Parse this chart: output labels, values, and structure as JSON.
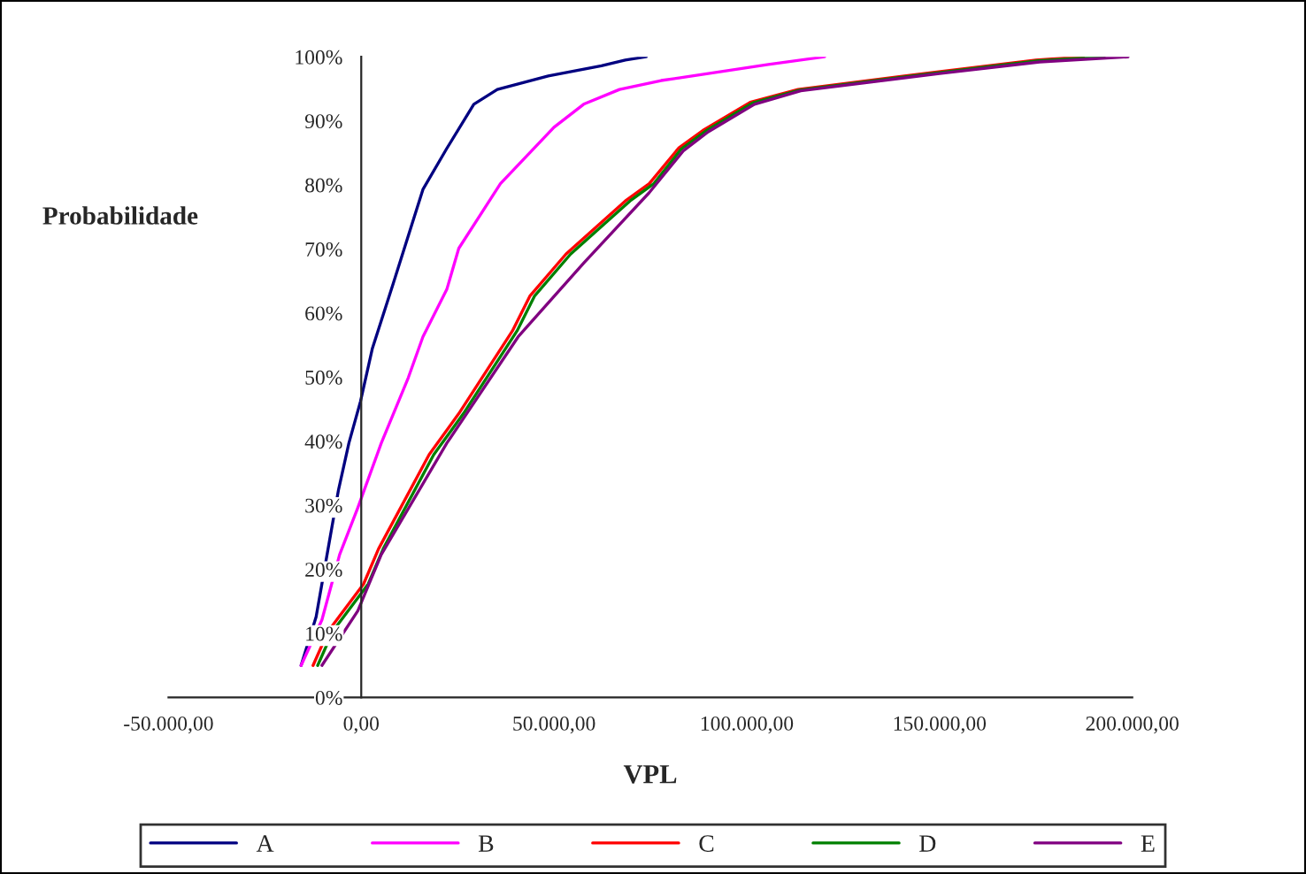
{
  "chart_data": {
    "type": "line",
    "xlabel": "VPL",
    "ylabel": "Probabilidade",
    "xlim": [
      -50000,
      200000
    ],
    "xticks": [
      {
        "value": -50000,
        "label": "-50.000,00"
      },
      {
        "value": 0,
        "label": "0,00"
      },
      {
        "value": 50000,
        "label": "50.000,00"
      },
      {
        "value": 100000,
        "label": "100.000,00"
      },
      {
        "value": 150000,
        "label": "150.000,00"
      },
      {
        "value": 200000,
        "label": "200.000,00"
      }
    ],
    "ylim": [
      0,
      100
    ],
    "yticks": [
      {
        "value": 0,
        "label": "0%"
      },
      {
        "value": 10,
        "label": "10%"
      },
      {
        "value": 20,
        "label": "20%"
      },
      {
        "value": 30,
        "label": "30%"
      },
      {
        "value": 40,
        "label": "40%"
      },
      {
        "value": 50,
        "label": "50%"
      },
      {
        "value": 60,
        "label": "60%"
      },
      {
        "value": 70,
        "label": "70%"
      },
      {
        "value": 80,
        "label": "80%"
      },
      {
        "value": 90,
        "label": "90%"
      },
      {
        "value": 100,
        "label": "100%"
      }
    ],
    "grid": false,
    "legend": "bottom",
    "marker": "none",
    "line_style": "solid",
    "series": [
      {
        "name": "A",
        "color": "#000080",
        "x": [
          -15600,
          -11700,
          -8600,
          -5900,
          -3200,
          -200,
          2900,
          8300,
          16000,
          22200,
          29200,
          35300,
          48500,
          62300,
          68500,
          73900
        ],
        "values": [
          5,
          12.6,
          23.2,
          32.4,
          39.7,
          46.2,
          54.5,
          64.6,
          79.3,
          85.7,
          92.6,
          94.9,
          97,
          98.6,
          99.5,
          100
        ]
      },
      {
        "name": "B",
        "color": "#ff00ff",
        "x": [
          -15600,
          -10200,
          -5600,
          -900,
          5200,
          12200,
          16000,
          22200,
          25300,
          36100,
          50000,
          57700,
          67000,
          77800,
          82400,
          105600,
          120200
        ],
        "values": [
          5,
          12.1,
          22.3,
          29.6,
          39.7,
          49.9,
          56.3,
          63.7,
          70.1,
          80.2,
          89,
          92.6,
          94.9,
          96.3,
          96.7,
          98.8,
          100
        ]
      },
      {
        "name": "C",
        "color": "#ff0000",
        "x": [
          -12500,
          -8600,
          600,
          4500,
          17600,
          25300,
          39200,
          43800,
          53100,
          68500,
          74700,
          82400,
          88600,
          100900,
          113300,
          148800,
          175000,
          187300
        ],
        "values": [
          5,
          10.3,
          17.7,
          23.2,
          37.9,
          44.3,
          57.2,
          62.7,
          69.2,
          77.5,
          80.2,
          85.8,
          88.5,
          92.9,
          94.9,
          97.6,
          99.5,
          100
        ]
      },
      {
        "name": "D",
        "color": "#008000",
        "x": [
          -11300,
          -7400,
          1800,
          5700,
          18800,
          26500,
          40400,
          45000,
          54300,
          69700,
          75900,
          83000,
          89300,
          101500,
          113700,
          149400,
          175500,
          192700
        ],
        "values": [
          5,
          10.3,
          17.7,
          23.2,
          37.9,
          44.3,
          57.2,
          62.7,
          69.2,
          77.5,
          80.2,
          85.6,
          88.4,
          92.8,
          94.8,
          97.5,
          99.4,
          100
        ]
      },
      {
        "name": "E",
        "color": "#800080",
        "x": [
          -10200,
          -900,
          5200,
          22200,
          40700,
          57700,
          74700,
          83500,
          90000,
          102000,
          114000,
          150000,
          176000,
          198900
        ],
        "values": [
          5,
          13.5,
          22.3,
          39.7,
          56.3,
          67.8,
          78.8,
          85.3,
          88.3,
          92.6,
          94.7,
          97.4,
          99.2,
          100
        ]
      }
    ]
  }
}
